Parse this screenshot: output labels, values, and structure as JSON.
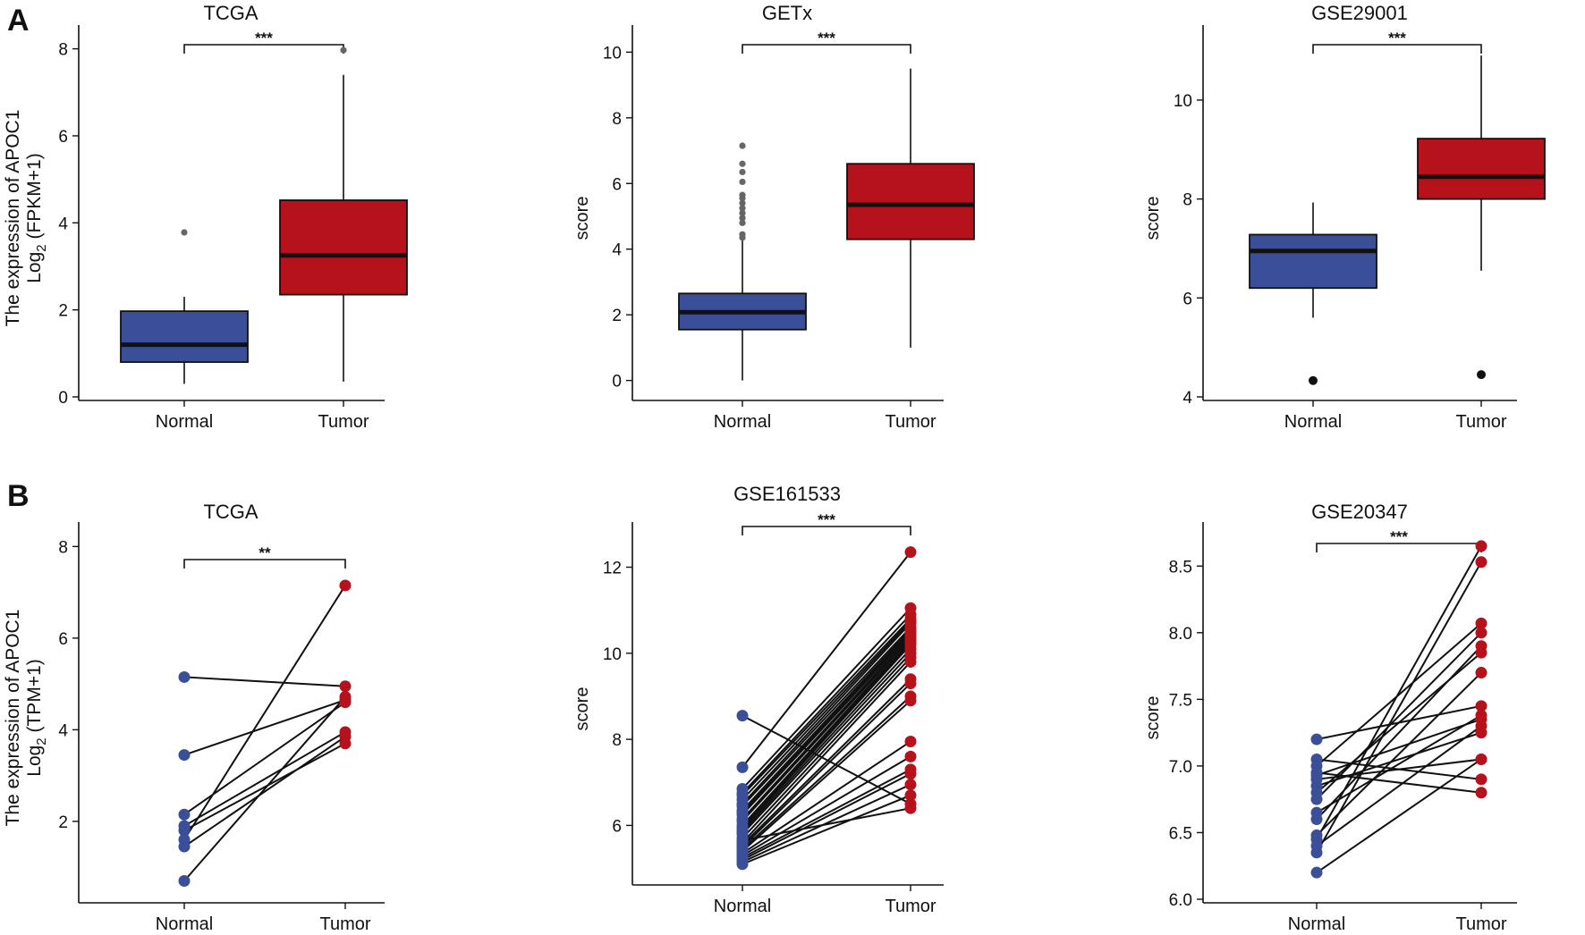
{
  "colors": {
    "normal": "#3a4f97",
    "tumor": "#b5121b",
    "line": "#111111",
    "outlier_gray": "#666666"
  },
  "panel_letters": [
    "A",
    "B"
  ],
  "chart_data": [
    {
      "id": "a1",
      "type": "box",
      "title": "TCGA",
      "ylabel": [
        "The expression of APOC1",
        "Log2 (FPKM+1)"
      ],
      "ylim": [
        0,
        8.3
      ],
      "yticks": [
        0,
        2,
        4,
        6,
        8
      ],
      "categories": [
        "Normal",
        "Tumor"
      ],
      "significance": "***",
      "boxes": [
        {
          "name": "Normal",
          "min": 0.3,
          "q1": 0.8,
          "median": 1.2,
          "q3": 1.97,
          "max": 2.3,
          "outliers": [
            3.78
          ]
        },
        {
          "name": "Tumor",
          "min": 0.35,
          "q1": 2.35,
          "median": 3.25,
          "q3": 4.52,
          "max": 7.4,
          "outliers": [
            7.97
          ]
        }
      ]
    },
    {
      "id": "a2",
      "type": "box",
      "title": "GETx",
      "ylabel": [
        "score"
      ],
      "ylim": [
        -0.5,
        10.5
      ],
      "yticks": [
        0,
        2,
        4,
        6,
        8,
        10
      ],
      "categories": [
        "Normal",
        "Tumor"
      ],
      "significance": "***",
      "boxes": [
        {
          "name": "Normal",
          "min": 0.0,
          "q1": 1.55,
          "median": 2.08,
          "q3": 2.65,
          "max": 4.3,
          "outliers": [
            4.35,
            4.45,
            4.8,
            4.95,
            5.1,
            5.25,
            5.4,
            5.55,
            5.65,
            6.05,
            6.35,
            6.6,
            7.15
          ]
        },
        {
          "name": "Tumor",
          "min": 1.0,
          "q1": 4.3,
          "median": 5.35,
          "q3": 6.6,
          "max": 9.5,
          "outliers": []
        }
      ]
    },
    {
      "id": "a3",
      "type": "box",
      "title": "GSE29001",
      "ylabel": [
        "score"
      ],
      "ylim": [
        4.0,
        11.3
      ],
      "yticks": [
        4,
        6,
        8,
        10
      ],
      "categories": [
        "Normal",
        "Tumor"
      ],
      "significance": "***",
      "boxes": [
        {
          "name": "Normal",
          "min": 5.6,
          "q1": 6.2,
          "median": 6.95,
          "q3": 7.28,
          "max": 7.93,
          "outliers": [
            4.33
          ]
        },
        {
          "name": "Tumor",
          "min": 6.55,
          "q1": 8.0,
          "median": 8.45,
          "q3": 9.22,
          "max": 10.9,
          "outliers": [
            4.45
          ]
        }
      ]
    },
    {
      "id": "b1",
      "type": "paired",
      "title": "TCGA",
      "ylabel": [
        "The expression of APOC1",
        "Log2 (TPM+1)"
      ],
      "ylim": [
        0.3,
        8.3
      ],
      "yticks": [
        2,
        4,
        6,
        8
      ],
      "categories": [
        "Normal",
        "Tumor"
      ],
      "significance": "**",
      "pairs": [
        [
          5.15,
          4.95
        ],
        [
          3.45,
          4.65
        ],
        [
          2.15,
          4.6
        ],
        [
          1.9,
          3.95
        ],
        [
          1.8,
          3.7
        ],
        [
          1.6,
          7.15
        ],
        [
          1.45,
          3.85
        ],
        [
          0.7,
          4.72
        ]
      ]
    },
    {
      "id": "b2",
      "type": "paired",
      "title": "GSE161533",
      "ylabel": [
        "score"
      ],
      "ylim": [
        4.7,
        12.8
      ],
      "yticks": [
        6,
        8,
        10,
        12
      ],
      "categories": [
        "Normal",
        "Tumor"
      ],
      "significance": "***",
      "pairs": [
        [
          8.55,
          6.5
        ],
        [
          7.35,
          12.35
        ],
        [
          6.85,
          11.05
        ],
        [
          6.75,
          10.9
        ],
        [
          6.7,
          10.8
        ],
        [
          6.6,
          10.75
        ],
        [
          6.5,
          10.7
        ],
        [
          6.45,
          10.6
        ],
        [
          6.35,
          10.55
        ],
        [
          6.3,
          10.5
        ],
        [
          6.25,
          10.45
        ],
        [
          6.15,
          10.4
        ],
        [
          6.1,
          10.35
        ],
        [
          6.0,
          10.3
        ],
        [
          5.95,
          10.25
        ],
        [
          5.9,
          10.2
        ],
        [
          5.85,
          10.1
        ],
        [
          5.8,
          10.0
        ],
        [
          5.7,
          9.9
        ],
        [
          5.65,
          6.4
        ],
        [
          5.6,
          9.8
        ],
        [
          5.55,
          9.4
        ],
        [
          5.5,
          9.3
        ],
        [
          5.45,
          9.0
        ],
        [
          5.4,
          8.9
        ],
        [
          5.35,
          7.95
        ],
        [
          5.3,
          7.6
        ],
        [
          5.25,
          7.3
        ],
        [
          5.2,
          7.2
        ],
        [
          5.15,
          6.95
        ],
        [
          5.1,
          6.7
        ]
      ]
    },
    {
      "id": "b3",
      "type": "paired",
      "title": "GSE20347",
      "ylabel": [
        "score"
      ],
      "ylim": [
        6.0,
        8.75
      ],
      "yticks": [
        6.0,
        6.5,
        7.0,
        7.5,
        8.0,
        8.5
      ],
      "tick_decimals": 1,
      "categories": [
        "Normal",
        "Tumor"
      ],
      "significance": "***",
      "pairs": [
        [
          7.2,
          7.45
        ],
        [
          7.05,
          6.9
        ],
        [
          7.0,
          8.07
        ],
        [
          6.95,
          6.8
        ],
        [
          6.93,
          7.35
        ],
        [
          6.9,
          7.05
        ],
        [
          6.85,
          7.25
        ],
        [
          6.8,
          7.85
        ],
        [
          6.75,
          8.0
        ],
        [
          6.65,
          7.38
        ],
        [
          6.6,
          7.9
        ],
        [
          6.48,
          7.7
        ],
        [
          6.45,
          8.65
        ],
        [
          6.4,
          7.3
        ],
        [
          6.35,
          8.53
        ],
        [
          6.2,
          7.05
        ]
      ]
    }
  ]
}
